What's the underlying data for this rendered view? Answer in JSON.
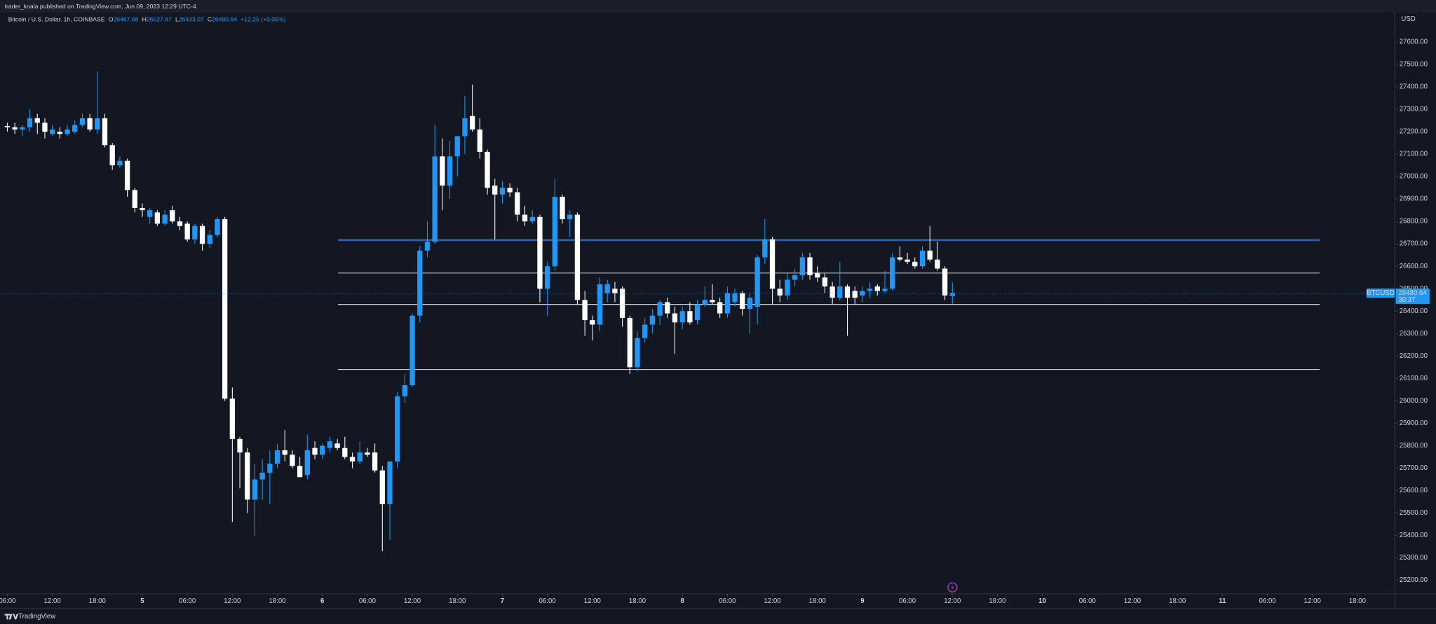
{
  "header": "trader_koala published on TradingView.com, Jun 09, 2023 12:29 UTC-4",
  "footer": "TradingView",
  "legend": {
    "symbol": "Bitcoin / U.S. Dollar, 1h, COINBASE",
    "o": "O",
    "h": "H",
    "l": "L",
    "c": "C",
    "change": "+12.25 (+0.05%)"
  },
  "price_tag": {
    "symbol": "BTCUSD",
    "countdown": "30:37"
  },
  "chart_data": {
    "type": "candlestick",
    "currency": "USD",
    "up_color": "#2196f3",
    "down_color": "#ffffff",
    "open": [
      27225,
      27220,
      27210,
      27220,
      27260,
      27240,
      27190,
      27200,
      27190,
      27200,
      27230,
      27260,
      27210,
      27260,
      27140,
      27050,
      27070,
      26940,
      26860,
      26820,
      26840,
      26790,
      26850,
      26800,
      26790,
      26720,
      26780,
      26700,
      26740,
      26810,
      26010,
      25830,
      25770,
      25560,
      25650,
      25680,
      25720,
      25780,
      25760,
      25710,
      25670,
      25790,
      25760,
      25790,
      25810,
      25790,
      25750,
      25730,
      25770,
      25770,
      25690,
      25540,
      25730,
      26020,
      26070,
      26380,
      26670,
      26710,
      27090,
      26960,
      27090,
      27180,
      27270,
      27210,
      27110,
      26960,
      26920,
      26950,
      26930,
      26830,
      26800,
      26820,
      26500,
      26600,
      26910,
      26810,
      26830,
      26450,
      26360,
      26340,
      26480,
      26500,
      26500,
      26370,
      26150,
      26280,
      26340,
      26380,
      26440,
      26390,
      26350,
      26400,
      26360,
      26430,
      26450,
      26440,
      26390,
      26440,
      26480,
      26410,
      26420,
      26640,
      26720,
      26500,
      26470,
      26540,
      26560,
      26640,
      26570,
      26550,
      26510,
      26460,
      26510,
      26490,
      26470,
      26490,
      26510,
      26490,
      26500,
      26640,
      26630,
      26620,
      26600,
      26670,
      26630,
      26590,
      26467.68
    ],
    "high": [
      27240,
      27240,
      27230,
      27300,
      27280,
      27260,
      27230,
      27220,
      27230,
      27250,
      27280,
      27280,
      27470,
      27280,
      27150,
      27090,
      27080,
      26950,
      26880,
      26860,
      26850,
      26850,
      26870,
      26820,
      26800,
      26790,
      26790,
      26760,
      26820,
      26820,
      26060,
      25840,
      25790,
      25720,
      25740,
      25780,
      25810,
      25870,
      25780,
      25750,
      25850,
      25820,
      25810,
      25840,
      25830,
      25840,
      25770,
      25820,
      25790,
      25810,
      25710,
      25720,
      26040,
      26120,
      26390,
      26690,
      26800,
      27230,
      27170,
      27160,
      27180,
      27360,
      27410,
      27260,
      27120,
      26990,
      26980,
      26970,
      26950,
      26870,
      26850,
      26830,
      26620,
      26990,
      26920,
      26850,
      26840,
      26490,
      26380,
      26550,
      26540,
      26530,
      26510,
      26380,
      26310,
      26370,
      26410,
      26450,
      26460,
      26420,
      26420,
      26440,
      26450,
      26510,
      26520,
      26460,
      26510,
      26500,
      26490,
      26480,
      26650,
      26810,
      26730,
      26540,
      26570,
      26590,
      26660,
      26660,
      26600,
      26570,
      26530,
      26620,
      26520,
      26510,
      26510,
      26530,
      26520,
      26580,
      26660,
      26690,
      26660,
      26640,
      26690,
      26780,
      26710,
      26600,
      26527.87
    ],
    "low": [
      27200,
      27190,
      27180,
      27200,
      27190,
      27170,
      27180,
      27170,
      27180,
      27190,
      27220,
      27200,
      27190,
      27130,
      27030,
      27040,
      26910,
      26840,
      26820,
      26790,
      26780,
      26780,
      26790,
      26760,
      26710,
      26700,
      26670,
      26680,
      26730,
      26000,
      25460,
      25610,
      25500,
      25400,
      25560,
      25540,
      25700,
      25730,
      25700,
      25660,
      25650,
      25740,
      25740,
      25770,
      25780,
      25740,
      25700,
      25720,
      25750,
      25680,
      25330,
      25380,
      25700,
      25990,
      26060,
      26350,
      26640,
      26700,
      26850,
      26900,
      27000,
      27100,
      27200,
      27080,
      26920,
      26720,
      26880,
      26910,
      26800,
      26780,
      26790,
      26440,
      26380,
      26580,
      26790,
      26730,
      26430,
      26290,
      26270,
      26310,
      26440,
      26440,
      26330,
      26120,
      26130,
      26260,
      26300,
      26340,
      26370,
      26210,
      26320,
      26340,
      26340,
      26420,
      26430,
      26370,
      26370,
      26420,
      26380,
      26300,
      26340,
      26610,
      26430,
      26440,
      26450,
      26510,
      26540,
      26540,
      26530,
      26480,
      26430,
      26450,
      26290,
      26430,
      26440,
      26460,
      26470,
      26480,
      26490,
      26620,
      26610,
      26590,
      26590,
      26620,
      26580,
      26450,
      26433.07
    ],
    "close": [
      27220,
      27210,
      27220,
      27260,
      27240,
      27200,
      27210,
      27190,
      27210,
      27230,
      27260,
      27210,
      27260,
      27140,
      27050,
      27070,
      26940,
      26860,
      26850,
      26850,
      26790,
      26830,
      26800,
      26780,
      26720,
      26780,
      26700,
      26740,
      26810,
      26010,
      25830,
      25770,
      25560,
      25650,
      25680,
      25720,
      25780,
      25760,
      25710,
      25660,
      25780,
      25760,
      25800,
      25820,
      25790,
      25750,
      25730,
      25770,
      25760,
      25690,
      25540,
      25730,
      26020,
      26070,
      26380,
      26670,
      26710,
      27090,
      26960,
      27090,
      27180,
      27260,
      27210,
      27110,
      26950,
      26920,
      26950,
      26930,
      26830,
      26800,
      26820,
      26500,
      26600,
      26910,
      26810,
      26830,
      26450,
      26360,
      26340,
      26520,
      26520,
      26480,
      26370,
      26150,
      26280,
      26340,
      26380,
      26440,
      26390,
      26350,
      26400,
      26350,
      26430,
      26450,
      26440,
      26390,
      26480,
      26480,
      26410,
      26460,
      26640,
      26720,
      26500,
      26470,
      26540,
      26560,
      26640,
      26560,
      26550,
      26510,
      26460,
      26510,
      26460,
      26460,
      26490,
      26500,
      26490,
      26500,
      26640,
      26630,
      26620,
      26600,
      26670,
      26630,
      26590,
      26470,
      26480.64
    ],
    "xticks": [
      "06:00",
      "12:00",
      "18:00",
      "5",
      "06:00",
      "12:00",
      "18:00",
      "6",
      "06:00",
      "12:00",
      "18:00",
      "7",
      "06:00",
      "12:00",
      "18:00",
      "8",
      "06:00",
      "12:00",
      "18:00",
      "9",
      "06:00",
      "12:00",
      "18:00",
      "10",
      "06:00",
      "12:00",
      "18:00",
      "11",
      "06:00",
      "12:00",
      "18:00"
    ],
    "ylim": [
      25140,
      27730
    ],
    "yticks": [
      {
        "value": 25200,
        "label": "25200.00"
      },
      {
        "value": 25300,
        "label": "25300.00"
      },
      {
        "value": 25400,
        "label": "25400.00"
      },
      {
        "value": 25500,
        "label": "25500.00"
      },
      {
        "value": 25600,
        "label": "25600.00"
      },
      {
        "value": 25700,
        "label": "25700.00"
      },
      {
        "value": 25800,
        "label": "25800.00"
      },
      {
        "value": 25900,
        "label": "25900.00"
      },
      {
        "value": 26000,
        "label": "26000.00"
      },
      {
        "value": 26100,
        "label": "26100.00"
      },
      {
        "value": 26200,
        "label": "26200.00"
      },
      {
        "value": 26300,
        "label": "26300.00"
      },
      {
        "value": 26400,
        "label": "26400.00"
      },
      {
        "value": 26500,
        "label": "26500.00"
      },
      {
        "value": 26600,
        "label": "26600.00"
      },
      {
        "value": 26700,
        "label": "26700.00"
      },
      {
        "value": 26800,
        "label": "26800.00"
      },
      {
        "value": 26900,
        "label": "26900.00"
      },
      {
        "value": 27000,
        "label": "27000.00"
      },
      {
        "value": 27100,
        "label": "27100.00"
      },
      {
        "value": 27200,
        "label": "27200.00"
      },
      {
        "value": 27300,
        "label": "27300.00"
      },
      {
        "value": 27400,
        "label": "27400.00"
      },
      {
        "value": 27500,
        "label": "27500.00"
      },
      {
        "value": 27600,
        "label": "27600.00"
      }
    ],
    "levels": [
      26717,
      26570,
      26430,
      26140
    ],
    "level_colors": [
      "#2f5ea8",
      "#c8cbd3",
      "#e6e8ee",
      "#c8cbd3"
    ],
    "grid": false
  }
}
